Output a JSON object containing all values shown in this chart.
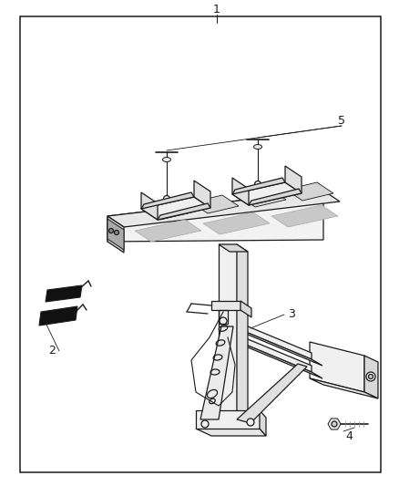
{
  "background_color": "#ffffff",
  "border_color": "#1a1a1a",
  "line_color": "#1a1a1a",
  "label_color": "#1a1a1a",
  "label_fontsize": 9,
  "figsize": [
    4.38,
    5.33
  ],
  "dpi": 100
}
